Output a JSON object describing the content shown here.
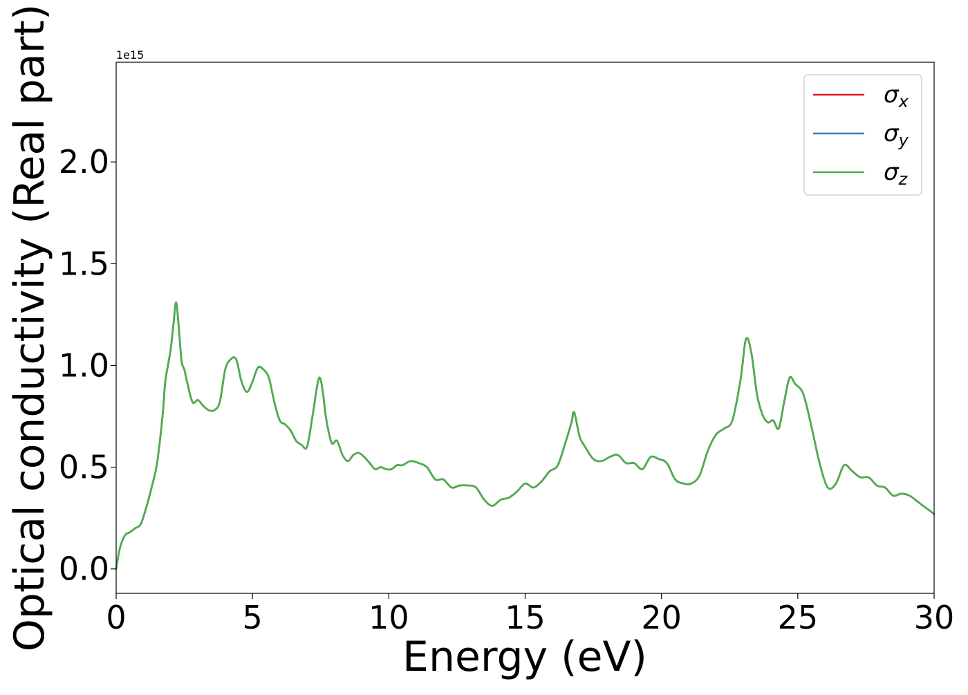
{
  "chart_data": {
    "type": "line",
    "title": "",
    "xlabel": "Energy (eV)",
    "ylabel": "Optical conductivity (Real part)",
    "y_offset_label": "1e15",
    "xlim": [
      0,
      30
    ],
    "ylim": [
      -0.12,
      2.49
    ],
    "y_scale_factor": 1000000000000000.0,
    "grid": false,
    "legend_position": "top-right",
    "x_ticks": [
      0,
      5,
      10,
      15,
      20,
      25,
      30
    ],
    "x_tick_labels": [
      "0",
      "5",
      "10",
      "15",
      "20",
      "25",
      "30"
    ],
    "y_ticks": [
      0.0,
      0.5,
      1.0,
      1.5,
      2.0
    ],
    "y_tick_labels": [
      "0.0",
      "0.5",
      "1.0",
      "1.5",
      "2.0"
    ],
    "x": [
      0,
      0.1,
      0.2,
      0.35,
      0.5,
      0.7,
      0.9,
      1.1,
      1.3,
      1.5,
      1.7,
      1.8,
      1.9,
      2.0,
      2.1,
      2.2,
      2.3,
      2.4,
      2.5,
      2.6,
      2.8,
      3.0,
      3.2,
      3.4,
      3.6,
      3.8,
      4.0,
      4.2,
      4.4,
      4.6,
      4.8,
      5.0,
      5.2,
      5.4,
      5.6,
      5.8,
      6.0,
      6.2,
      6.4,
      6.6,
      6.8,
      7.0,
      7.2,
      7.4,
      7.5,
      7.6,
      7.7,
      7.9,
      8.1,
      8.3,
      8.5,
      8.7,
      8.9,
      9.1,
      9.3,
      9.5,
      9.7,
      9.9,
      10.1,
      10.3,
      10.5,
      10.8,
      11.1,
      11.4,
      11.7,
      12.0,
      12.3,
      12.6,
      12.9,
      13.2,
      13.5,
      13.8,
      14.1,
      14.4,
      14.7,
      15.0,
      15.3,
      15.6,
      15.9,
      16.2,
      16.5,
      16.7,
      16.8,
      17.0,
      17.2,
      17.5,
      17.8,
      18.1,
      18.4,
      18.7,
      19.0,
      19.3,
      19.6,
      19.9,
      20.2,
      20.5,
      20.8,
      21.1,
      21.4,
      21.7,
      22.0,
      22.3,
      22.6,
      22.9,
      23.1,
      23.3,
      23.5,
      23.7,
      23.9,
      24.1,
      24.3,
      24.5,
      24.7,
      24.9,
      25.2,
      25.5,
      25.8,
      26.1,
      26.4,
      26.7,
      27.0,
      27.3,
      27.6,
      27.9,
      28.2,
      28.5,
      28.8,
      29.1,
      29.4,
      29.7,
      30.0
    ],
    "y": [
      0.0,
      0.08,
      0.13,
      0.17,
      0.18,
      0.2,
      0.22,
      0.3,
      0.4,
      0.52,
      0.75,
      0.92,
      1.0,
      1.08,
      1.2,
      1.31,
      1.18,
      1.02,
      0.98,
      0.92,
      0.82,
      0.83,
      0.8,
      0.78,
      0.78,
      0.82,
      0.98,
      1.03,
      1.03,
      0.92,
      0.87,
      0.92,
      0.99,
      0.98,
      0.94,
      0.82,
      0.73,
      0.71,
      0.68,
      0.63,
      0.61,
      0.6,
      0.75,
      0.92,
      0.93,
      0.85,
      0.74,
      0.62,
      0.63,
      0.56,
      0.53,
      0.56,
      0.57,
      0.55,
      0.52,
      0.49,
      0.5,
      0.49,
      0.49,
      0.51,
      0.51,
      0.53,
      0.52,
      0.5,
      0.44,
      0.44,
      0.4,
      0.41,
      0.41,
      0.4,
      0.34,
      0.31,
      0.34,
      0.35,
      0.38,
      0.42,
      0.4,
      0.43,
      0.48,
      0.51,
      0.63,
      0.72,
      0.77,
      0.65,
      0.6,
      0.54,
      0.53,
      0.55,
      0.56,
      0.52,
      0.52,
      0.49,
      0.55,
      0.54,
      0.52,
      0.44,
      0.42,
      0.42,
      0.46,
      0.58,
      0.66,
      0.69,
      0.73,
      0.93,
      1.13,
      1.06,
      0.86,
      0.76,
      0.72,
      0.73,
      0.69,
      0.82,
      0.94,
      0.91,
      0.86,
      0.7,
      0.52,
      0.4,
      0.42,
      0.51,
      0.48,
      0.45,
      0.45,
      0.41,
      0.4,
      0.36,
      0.37,
      0.36,
      0.33,
      0.3,
      0.27
    ],
    "series": [
      {
        "name": "σ_x",
        "color": "#e41a1c"
      },
      {
        "name": "σ_y",
        "color": "#377eb8"
      },
      {
        "name": "σ_z",
        "color": "#4daf4a"
      }
    ]
  }
}
